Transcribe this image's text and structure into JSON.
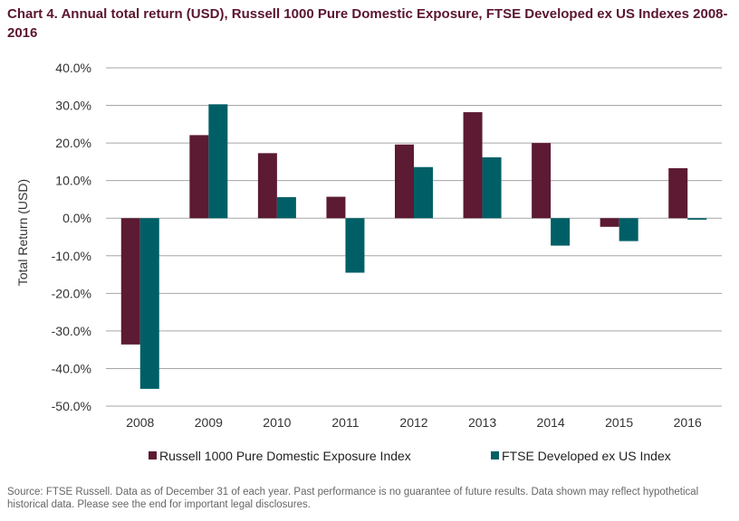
{
  "title": "Chart 4. Annual total return (USD), Russell 1000 Pure Domestic Exposure, FTSE Developed ex US Indexes 2008-2016",
  "footnote": "Source: FTSE Russell. Data as of December 31 of each year. Past performance is no guarantee of future results. Data shown may reflect hypothetical historical data. Please see the end for important legal disclosures.",
  "colors": {
    "series1": "#5c1a33",
    "series2": "#005f66",
    "grid": "#a6a6a6"
  },
  "chart_data": {
    "type": "bar",
    "title": "Chart 4. Annual total return (USD), Russell 1000 Pure Domestic Exposure, FTSE Developed ex US Indexes 2008-2016",
    "xlabel": "",
    "ylabel": "Total Return (USD)",
    "ylim": [
      -50,
      40
    ],
    "yticks": [
      40,
      30,
      20,
      10,
      0,
      -10,
      -20,
      -30,
      -40,
      -50
    ],
    "ytick_labels": [
      "40.0%",
      "30.0%",
      "20.0%",
      "10.0%",
      "0.0%",
      "-10.0%",
      "-20.0%",
      "-30.0%",
      "-40.0%",
      "-50.0%"
    ],
    "grid": true,
    "legend_position": "bottom",
    "categories": [
      "2008",
      "2009",
      "2010",
      "2011",
      "2012",
      "2013",
      "2014",
      "2015",
      "2016"
    ],
    "series": [
      {
        "name": "Russell 1000 Pure Domestic Exposure Index",
        "values": [
          -33.6,
          22.1,
          17.3,
          5.7,
          19.6,
          28.2,
          20.0,
          -2.3,
          13.3
        ]
      },
      {
        "name": "FTSE Developed ex US Index",
        "values": [
          -45.4,
          30.3,
          5.6,
          -14.5,
          13.6,
          16.2,
          -7.3,
          -6.1,
          -0.4
        ]
      }
    ]
  }
}
